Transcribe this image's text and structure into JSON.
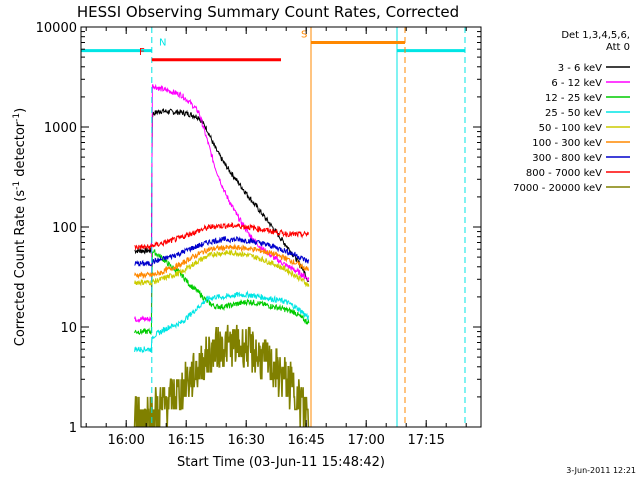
{
  "chart_data": {
    "type": "line",
    "title": "HESSI Observing Summary Count Rates, Corrected",
    "xlabel": "Start Time (03-Jun-11 15:48:42)",
    "ylabel_main": "Corrected Count Rate (s",
    "ylabel_sup1": "-1",
    "ylabel_mid": " detector",
    "ylabel_sup2": "-1",
    "ylabel_end": ")",
    "date_stamp": "3-Jun-2011 12:21",
    "x_unit": "minutes after 15:48:42 UT",
    "xlim": [
      0,
      100
    ],
    "ylim": [
      1,
      10000
    ],
    "y_scale": "log",
    "x_ticks": [
      {
        "t": 11.3,
        "label": "16:00"
      },
      {
        "t": 26.3,
        "label": "16:15"
      },
      {
        "t": 41.3,
        "label": "16:30"
      },
      {
        "t": 56.3,
        "label": "16:45"
      },
      {
        "t": 71.3,
        "label": "17:00"
      },
      {
        "t": 86.3,
        "label": "17:15"
      }
    ],
    "y_ticks": [
      {
        "v": 1,
        "label": "1"
      },
      {
        "v": 10,
        "label": "10"
      },
      {
        "v": 100,
        "label": "100"
      },
      {
        "v": 1000,
        "label": "1000"
      },
      {
        "v": 10000,
        "label": "10000"
      }
    ],
    "legend": {
      "title_lines": [
        "Det 1,3,4,5,6,",
        "Att 0"
      ],
      "position": "right"
    },
    "series": [
      {
        "name": "3 - 6 keV",
        "color": "#000000",
        "x": [
          13.4,
          17.6,
          17.8,
          20,
          22,
          25,
          27,
          29.5,
          31.5,
          33.5,
          36,
          39,
          42,
          45,
          48,
          51,
          53.5,
          55.5,
          57
        ],
        "y": [
          58,
          58,
          1350,
          1450,
          1420,
          1400,
          1350,
          1250,
          950,
          620,
          420,
          290,
          200,
          140,
          98,
          68,
          50,
          38,
          28
        ]
      },
      {
        "name": "6 - 12 keV",
        "color": "#ff00ff",
        "x": [
          13.4,
          17.6,
          17.8,
          20,
          22,
          25,
          27,
          29.5,
          31.5,
          33.5,
          36,
          39,
          42,
          45,
          48,
          51,
          53.5,
          55.5,
          57
        ],
        "y": [
          12,
          12,
          2600,
          2400,
          2300,
          2100,
          1800,
          1400,
          750,
          400,
          220,
          130,
          85,
          62,
          50,
          42,
          37,
          33,
          30
        ]
      },
      {
        "name": "12 - 25 keV",
        "color": "#00cc00",
        "x": [
          13.4,
          17.6,
          17.8,
          20,
          22,
          25,
          27,
          29.5,
          31.5,
          33.5,
          36,
          39,
          42,
          45,
          48,
          51,
          53.5,
          55.5,
          57
        ],
        "y": [
          9,
          9,
          58,
          50,
          42,
          34,
          27,
          22,
          18,
          16,
          16,
          17,
          18,
          17,
          16,
          15,
          14,
          12,
          11
        ]
      },
      {
        "name": "25 - 50 keV",
        "color": "#00e5e5",
        "x": [
          13.4,
          17.6,
          17.8,
          20,
          22,
          25,
          27,
          29.5,
          31.5,
          33.5,
          36,
          39,
          42,
          45,
          48,
          51,
          53.5,
          55.5,
          57
        ],
        "y": [
          6,
          6,
          8,
          9,
          10,
          11,
          13,
          16,
          19,
          20,
          20,
          21,
          21,
          20,
          19,
          18,
          16,
          14,
          12
        ]
      },
      {
        "name": "50 - 100 keV",
        "color": "#cccc00",
        "x": [
          13.4,
          17.6,
          17.8,
          20,
          22,
          25,
          27,
          29.5,
          31.5,
          33.5,
          36,
          39,
          42,
          45,
          48,
          51,
          53.5,
          55.5,
          57
        ],
        "y": [
          28,
          28,
          28,
          30,
          32,
          35,
          40,
          46,
          51,
          54,
          55,
          55,
          52,
          48,
          43,
          38,
          33,
          29,
          26
        ]
      },
      {
        "name": "100 - 300 keV",
        "color": "#ff8800",
        "x": [
          13.4,
          17.6,
          17.8,
          20,
          22,
          25,
          27,
          29.5,
          31.5,
          33.5,
          36,
          39,
          42,
          45,
          48,
          51,
          53.5,
          55.5,
          57
        ],
        "y": [
          33,
          33,
          33,
          35,
          38,
          42,
          48,
          54,
          59,
          61,
          62,
          62,
          61,
          58,
          54,
          49,
          44,
          40,
          37
        ]
      },
      {
        "name": "300 - 800 keV",
        "color": "#0000cc",
        "x": [
          13.4,
          17.6,
          17.8,
          20,
          22,
          25,
          27,
          29.5,
          31.5,
          33.5,
          36,
          39,
          42,
          45,
          48,
          51,
          53.5,
          55.5,
          57
        ],
        "y": [
          43,
          43,
          45,
          47,
          50,
          55,
          60,
          65,
          70,
          73,
          75,
          75,
          73,
          69,
          64,
          58,
          53,
          48,
          45
        ]
      },
      {
        "name": "800 - 7000 keV",
        "color": "#ff0000",
        "x": [
          13.4,
          17.6,
          17.8,
          20,
          22,
          25,
          27,
          29.5,
          31.5,
          33.5,
          36,
          39,
          42,
          45,
          48,
          51,
          53.5,
          55.5,
          57
        ],
        "y": [
          63,
          63,
          65,
          68,
          72,
          78,
          85,
          92,
          98,
          102,
          103,
          103,
          100,
          95,
          90,
          86,
          84,
          84,
          86
        ]
      },
      {
        "name": "7000 - 20000 keV",
        "color": "#808000",
        "x": [
          13.4,
          17.6,
          17.8,
          20,
          22,
          25,
          27,
          29.5,
          31.5,
          33.5,
          36,
          39,
          42,
          45,
          48,
          51,
          53.5,
          55.5,
          57
        ],
        "y": [
          1.3,
          1.3,
          1.4,
          1.6,
          1.9,
          2.3,
          3,
          4,
          5,
          6,
          6.5,
          6.5,
          6,
          5,
          4,
          3,
          2.3,
          1.7,
          1.3
        ]
      }
    ],
    "annotations": [
      {
        "label": "N",
        "kind": "night",
        "color": "#00e5e5",
        "level": 5800,
        "intervals": [
          [
            0,
            17.7
          ],
          [
            79,
            96
          ]
        ],
        "dashed_boundaries": [
          17.7,
          96
        ],
        "solid_boundaries": [
          79
        ],
        "label_at": 19.5
      },
      {
        "label": "F",
        "kind": "flare",
        "color": "#ff0000",
        "level": 4700,
        "intervals": [
          [
            17.7,
            50
          ]
        ],
        "label_at": 14.5
      },
      {
        "label": "S",
        "kind": "saa",
        "color": "#ff8800",
        "level": 7000,
        "intervals": [
          [
            57.5,
            81
          ]
        ],
        "solid_boundaries": [
          57.5
        ],
        "dashed_boundaries": [
          81
        ],
        "label_at": 55
      }
    ]
  }
}
